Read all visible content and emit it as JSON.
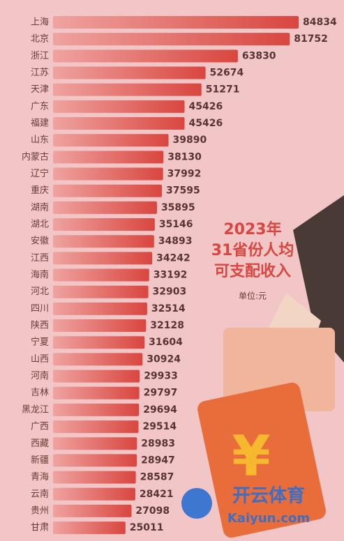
{
  "chart_data": {
    "type": "hbar",
    "title": "2023年",
    "subtitle": "31省份人均",
    "subtitle2": "可支配收入",
    "unit": "单位:元",
    "categories": [
      "上海",
      "北京",
      "浙江",
      "江苏",
      "天津",
      "广东",
      "福建",
      "山东",
      "内蒙古",
      "辽宁",
      "重庆",
      "湖南",
      "湖北",
      "安徽",
      "江西",
      "海南",
      "河北",
      "四川",
      "陕西",
      "宁夏",
      "山西",
      "河南",
      "吉林",
      "黑龙江",
      "广西",
      "西藏",
      "新疆",
      "青海",
      "云南",
      "贵州",
      "甘肃"
    ],
    "values": [
      84834,
      81752,
      63830,
      52674,
      51271,
      45426,
      45426,
      39890,
      38130,
      37992,
      37595,
      35895,
      35146,
      34893,
      34242,
      33192,
      32903,
      32514,
      32128,
      31604,
      30924,
      29933,
      29797,
      29694,
      29514,
      28983,
      28947,
      28587,
      28421,
      27098,
      25011
    ],
    "color": "#d9463f",
    "watermark": {
      "brand": "开云体育",
      "site": "Kaiyun.com"
    }
  }
}
